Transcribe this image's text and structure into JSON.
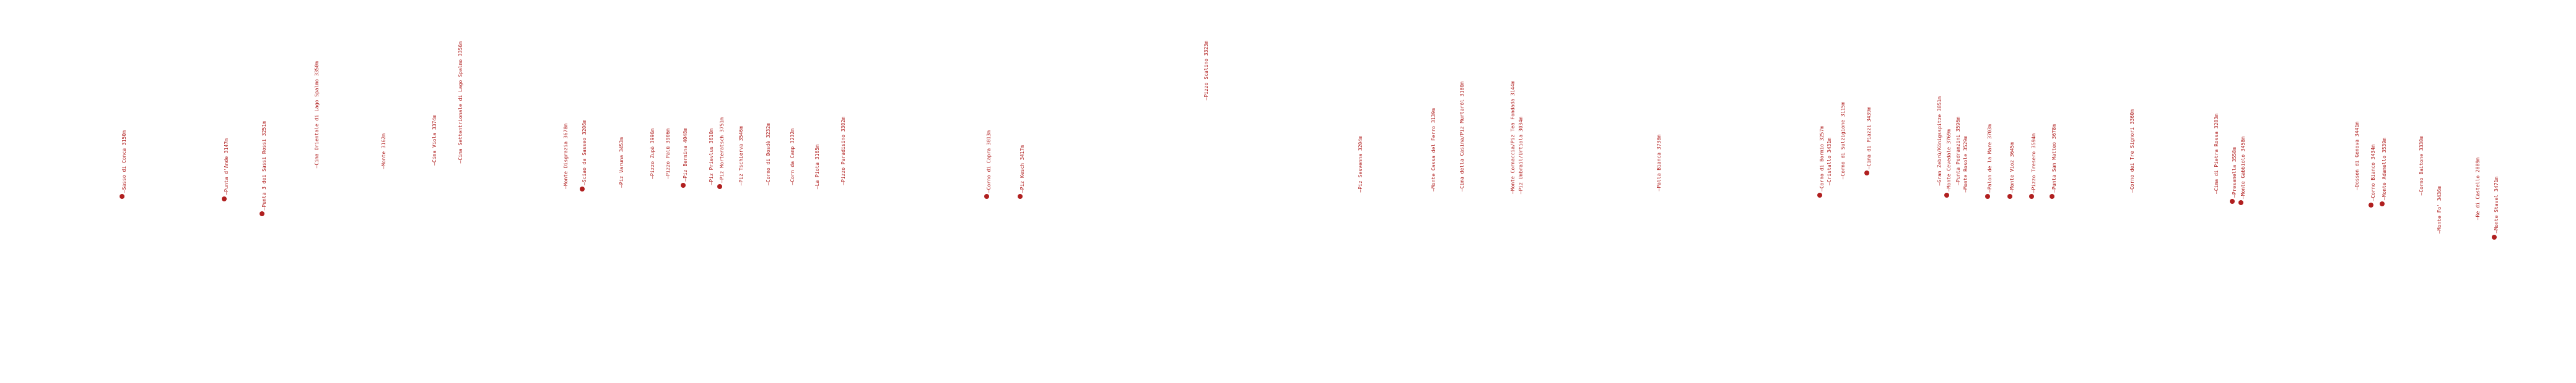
{
  "marker_color": "#b01f1f",
  "peaks": [
    {
      "label": "—Sasso di Conca 3150m",
      "marker": true
    },
    {
      "label": "—Punta d'Ande 3147m",
      "marker": true
    },
    {
      "label": "—Punta 3 dei Sassi Rossi 3251m",
      "marker": true
    },
    {
      "label": "—Cima Orientale di Lago Spalmo 3350m",
      "marker": false
    },
    {
      "label": "—Monte 3162m",
      "marker": false
    },
    {
      "label": "—Cima Viola 3374m",
      "marker": false
    },
    {
      "label": "—Cima Settentrionale di Lago Spalmo 3356m",
      "marker": false
    },
    {
      "label": "—Monte Disgrazia 3678m",
      "marker": false
    },
    {
      "label": "—Sciao da Sasseo 3206m",
      "marker": true
    },
    {
      "label": "—Piz Varuna 3453m",
      "marker": false
    },
    {
      "label": "—Pizzo Zupò 3996m",
      "marker": false
    },
    {
      "label": "—Pizzo Palü 3906m",
      "marker": false
    },
    {
      "label": "—Piz Bernina 4048m",
      "marker": true
    },
    {
      "label": "—Piz Prievlus 3610m",
      "marker": false
    },
    {
      "label": "—Piz Morteratsch 3751m",
      "marker": true
    },
    {
      "label": "—Piz Tschierva 3546m",
      "marker": false
    },
    {
      "label": "—Corno di Dosdè 3232m",
      "marker": false
    },
    {
      "label": "—Corn da Camp 3232m",
      "marker": false
    },
    {
      "label": "—La Piota 3165m",
      "marker": false
    },
    {
      "label": "—Pizzo Paradisino 3302m",
      "marker": false
    },
    {
      "label": "—Corno di Capra 3013m",
      "marker": true
    },
    {
      "label": "—Piz Kesch 3417m",
      "marker": true
    },
    {
      "label": "—Pizzo Scalino 3323m",
      "marker": false
    },
    {
      "label": "—Piz Sesvenna 3204m",
      "marker": false
    },
    {
      "label": "—Monte Cassa del Ferro 3139m",
      "marker": false
    },
    {
      "label": "—Cima della Casina/Piz Murtaröl 3180m",
      "marker": false
    },
    {
      "label": "—Monte Cornaccia/Piz Tea Fondada 3144m",
      "marker": false
    },
    {
      "label": "—Piz Umbrail/Urtiola 3034m",
      "marker": false
    },
    {
      "label": "—Palla Bianca 3738m",
      "marker": false
    },
    {
      "label": "—Corno di Bormio 3257m",
      "marker": true
    },
    {
      "label": "—Cristallo 3431m",
      "marker": false
    },
    {
      "label": "—Corno di Sulzigione 3115m",
      "marker": false
    },
    {
      "label": "—Cima di Piazzi 3439m",
      "marker": true
    },
    {
      "label": "—Gran Zebrù/Königsspitze 3851m",
      "marker": false
    },
    {
      "label": "—Monte Cevedale 3769m",
      "marker": true
    },
    {
      "label": "—Punta Pedranzini 3596m",
      "marker": false
    },
    {
      "label": "—Monte Rosole 3529m",
      "marker": false
    },
    {
      "label": "—Palon de la Mare 3703m",
      "marker": true
    },
    {
      "label": "—Monte Vioz 3645m",
      "marker": true
    },
    {
      "label": "—Pizzo Tresero 3594m",
      "marker": true
    },
    {
      "label": "—Punta San Matteo 3678m",
      "marker": true
    },
    {
      "label": "—Corno dei Tre Signori 3360m",
      "marker": false
    },
    {
      "label": "—Cima di Pietra Rossa 3283m",
      "marker": false
    },
    {
      "label": "—Presanella 3558m",
      "marker": true
    },
    {
      "label": "—Monte Gabbiolo 3458m",
      "marker": true
    },
    {
      "label": "—Dosson di Genova 3441m",
      "marker": false
    },
    {
      "label": "—Corno Bianco 3434m",
      "marker": true
    },
    {
      "label": "—Monte Adamello 3539m",
      "marker": true
    },
    {
      "label": "—Corno Baitone 3330m",
      "marker": false
    },
    {
      "label": "—Monte Fo' 3436m",
      "marker": false
    },
    {
      "label": "—Re di Castello 2889m",
      "marker": false
    },
    {
      "label": "—Monte Stavel 3471m",
      "marker": true
    }
  ]
}
